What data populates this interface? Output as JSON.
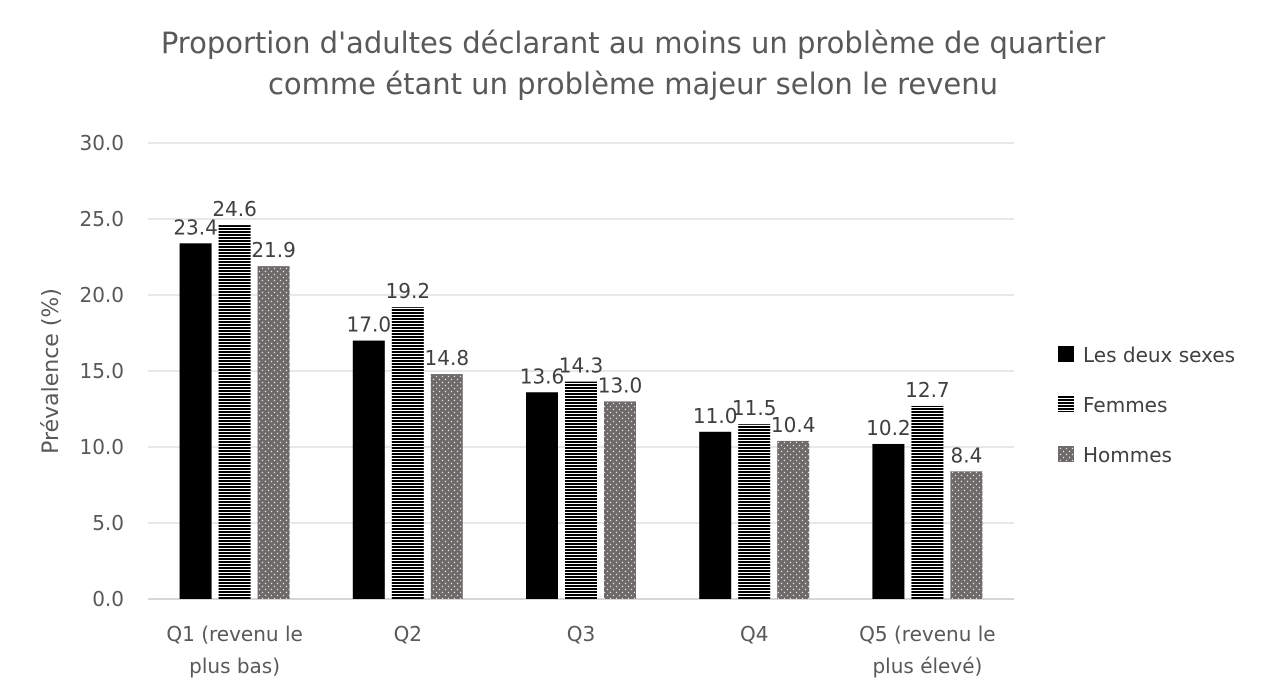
{
  "chart_data": {
    "type": "bar",
    "title_lines": [
      "Proportion d'adultes déclarant au moins un problème de quartier",
      "comme étant un problème majeur selon le revenu"
    ],
    "xlabel": "",
    "ylabel": "Prévalence (%)",
    "ylim": [
      0,
      30
    ],
    "yticks": [
      "0.0",
      "5.0",
      "10.0",
      "15.0",
      "20.0",
      "25.0",
      "30.0"
    ],
    "ytick_values": [
      0,
      5,
      10,
      15,
      20,
      25,
      30
    ],
    "grid": true,
    "legend_position": "right",
    "categories": [
      [
        "Q1 (revenu le",
        "plus bas)"
      ],
      [
        "Q2"
      ],
      [
        "Q3"
      ],
      [
        "Q4"
      ],
      [
        "Q5 (revenu le",
        "plus élevé)"
      ]
    ],
    "series": [
      {
        "name": "Les deux sexes",
        "pattern": "solid",
        "color": "#000000",
        "values": [
          23.4,
          17.0,
          13.6,
          11.0,
          10.2
        ],
        "labels": [
          "23.4",
          "17.0",
          "13.6",
          "11.0",
          "10.2"
        ]
      },
      {
        "name": "Femmes",
        "pattern": "horizontal-stripes",
        "color": "#000000",
        "values": [
          24.6,
          19.2,
          14.3,
          11.5,
          12.7
        ],
        "labels": [
          "24.6",
          "19.2",
          "14.3",
          "11.5",
          "12.7"
        ]
      },
      {
        "name": "Hommes",
        "pattern": "dotted",
        "color": "#7f7f7f",
        "values": [
          21.9,
          14.8,
          13.0,
          10.4,
          8.4
        ],
        "labels": [
          "21.9",
          "14.8",
          "13.0",
          "10.4",
          "8.4"
        ]
      }
    ]
  }
}
